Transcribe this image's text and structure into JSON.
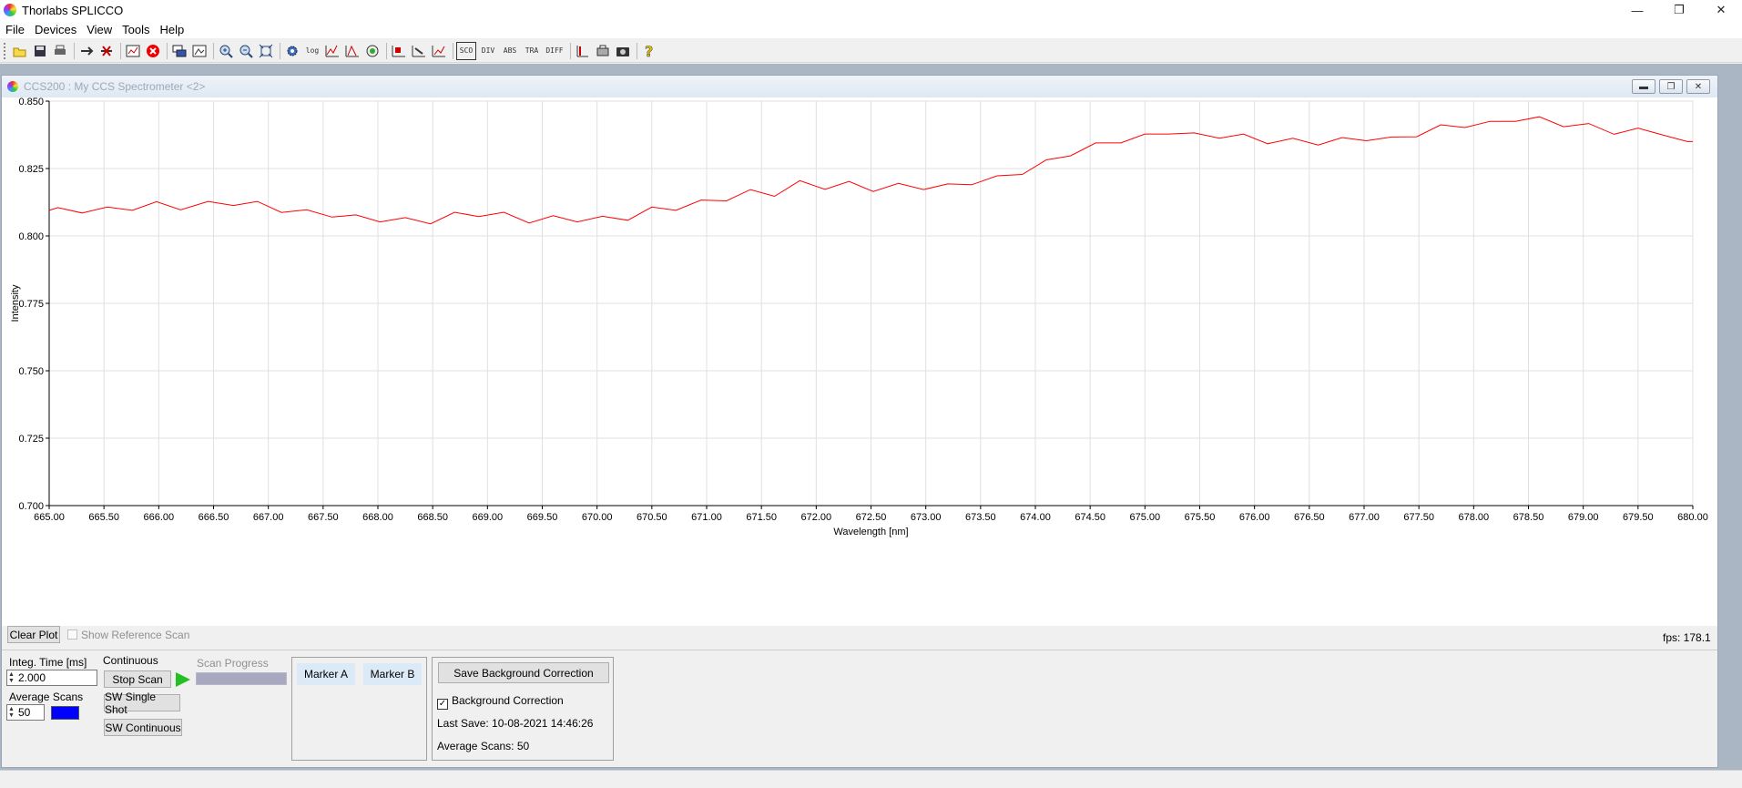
{
  "window": {
    "title": "Thorlabs SPLICCO"
  },
  "menu": [
    "File",
    "Devices",
    "View",
    "Tools",
    "Help"
  ],
  "toolbar": {
    "icons": [
      "open-icon",
      "save-icon",
      "print-icon",
      "connect-icon",
      "disconnect-icon",
      "plot-icon",
      "stop-icon",
      "cascade-icon",
      "export-icon",
      "zoom-in-icon",
      "zoom-out-icon",
      "zoom-fit-icon",
      "settings-icon",
      "log-icon",
      "peak-icon",
      "triangle-icon",
      "color-icon",
      "chart-a-icon",
      "chart-b-icon",
      "chart-c-icon"
    ],
    "mode_labels": [
      "SCO",
      "DIV",
      "ABS",
      "TRA",
      "DIFF"
    ]
  },
  "child": {
    "title": "CCS200 : My CCS Spectrometer <2>"
  },
  "chart_data": {
    "type": "line",
    "xlabel": "Wavelength [nm]",
    "ylabel": "Intensity",
    "xlim": [
      665.0,
      680.0
    ],
    "ylim": [
      0.7,
      0.85
    ],
    "xticks": [
      "665.00",
      "665.50",
      "666.00",
      "666.50",
      "667.00",
      "667.50",
      "668.00",
      "668.50",
      "669.00",
      "669.50",
      "670.00",
      "670.50",
      "671.00",
      "671.50",
      "672.00",
      "672.50",
      "673.00",
      "673.50",
      "674.00",
      "674.50",
      "675.00",
      "675.50",
      "676.00",
      "676.50",
      "677.00",
      "677.50",
      "678.00",
      "678.50",
      "679.00",
      "679.50",
      "680.00"
    ],
    "yticks": [
      "0.700",
      "0.725",
      "0.750",
      "0.775",
      "0.800",
      "0.825",
      "0.850"
    ],
    "grid": true,
    "series": [
      {
        "color": "#ff0000",
        "x": [
          665.0,
          665.08,
          665.3,
          665.53,
          665.76,
          665.98,
          666.2,
          666.45,
          666.68,
          666.9,
          667.12,
          667.35,
          667.58,
          667.8,
          668.02,
          668.25,
          668.48,
          668.7,
          668.92,
          669.15,
          669.38,
          669.6,
          669.82,
          670.05,
          670.28,
          670.5,
          670.72,
          670.95,
          671.18,
          671.4,
          671.62,
          671.85,
          672.08,
          672.3,
          672.52,
          672.75,
          672.98,
          673.2,
          673.42,
          673.65,
          673.88,
          674.1,
          674.32,
          674.55,
          674.78,
          675.0,
          675.22,
          675.45,
          675.68,
          675.9,
          676.12,
          676.35,
          676.58,
          676.8,
          677.02,
          677.25,
          677.48,
          677.7,
          677.92,
          678.15,
          678.38,
          678.6,
          678.82,
          679.05,
          679.28,
          679.5,
          679.72,
          679.95,
          680.0
        ],
        "y": [
          0.8095,
          0.8105,
          0.8085,
          0.8107,
          0.8095,
          0.8127,
          0.8097,
          0.8128,
          0.8113,
          0.8128,
          0.8087,
          0.8097,
          0.807,
          0.8078,
          0.8052,
          0.8068,
          0.8045,
          0.8088,
          0.8072,
          0.8088,
          0.8048,
          0.8075,
          0.8052,
          0.8073,
          0.8058,
          0.8107,
          0.8095,
          0.8133,
          0.813,
          0.8172,
          0.8147,
          0.8205,
          0.8173,
          0.8202,
          0.8165,
          0.8195,
          0.8172,
          0.8193,
          0.819,
          0.8223,
          0.8228,
          0.8282,
          0.8297,
          0.8345,
          0.8345,
          0.8378,
          0.8378,
          0.8382,
          0.8362,
          0.8378,
          0.8342,
          0.8362,
          0.8337,
          0.8365,
          0.8353,
          0.8367,
          0.8368,
          0.8412,
          0.8402,
          0.8425,
          0.8425,
          0.8442,
          0.8405,
          0.8417,
          0.8377,
          0.84,
          0.8375,
          0.835,
          0.835
        ]
      }
    ]
  },
  "controls": {
    "clear_plot": "Clear Plot",
    "show_reference": "Show Reference Scan",
    "fps": "fps: 178.1",
    "integ_time_label": "Integ. Time [ms]",
    "integ_time_value": "2.000",
    "average_scans_label": "Average Scans",
    "average_scans_value": "50",
    "swatch_color": "#0000ff",
    "continuous_label": "Continuous",
    "stop_scan": "Stop Scan",
    "sw_single_shot": "SW Single Shot",
    "sw_continuous": "SW Continuous",
    "scan_progress": "Scan Progress",
    "marker_a": "Marker A",
    "marker_b": "Marker B",
    "save_bg": "Save Background Correction",
    "bg_correction": "Background Correction",
    "last_save": "Last Save: 10-08-2021 14:46:26",
    "bg_average_scans": "Average Scans: 50"
  }
}
